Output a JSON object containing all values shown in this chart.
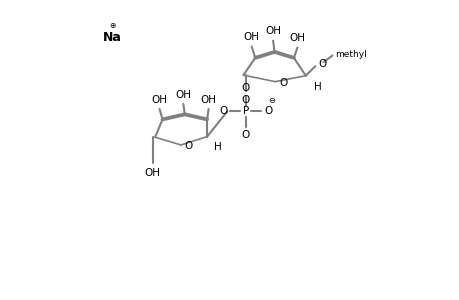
{
  "bg_color": "#ffffff",
  "line_color": "#808080",
  "text_color": "#000000",
  "line_width": 1.5,
  "font_size": 7.5,
  "figsize": [
    4.6,
    3.0
  ],
  "dpi": 100,
  "xlim": [
    0,
    10
  ],
  "ylim": [
    0,
    10
  ]
}
